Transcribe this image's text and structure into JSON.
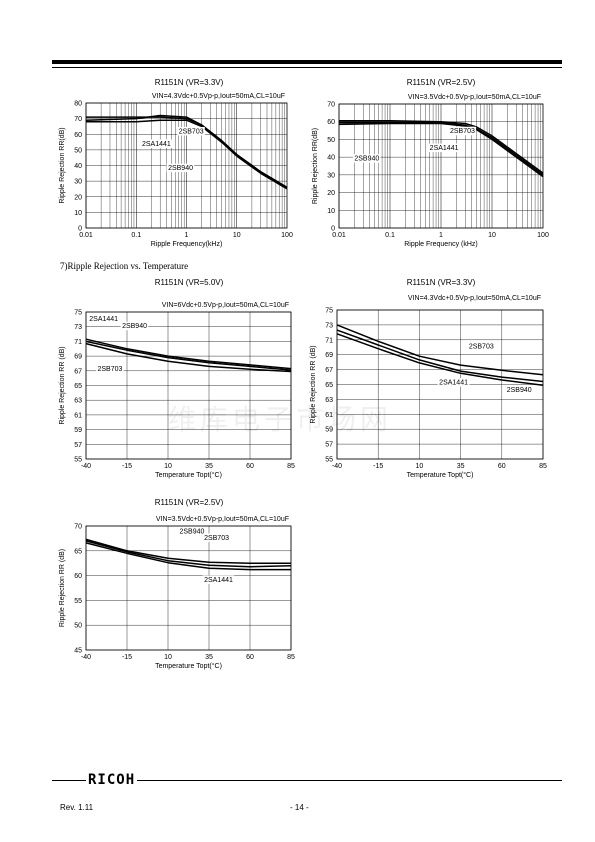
{
  "section_label": "7)Ripple Rejection vs. Temperature",
  "watermark": "维库电子市场网",
  "footer": {
    "logo": "RICOH",
    "revision": "Rev. 1.11",
    "page": "- 14 -"
  },
  "chart_data": [
    {
      "type": "line",
      "title": "R1151N (VR=3.3V)",
      "subtitle": "VIN=4.3Vdc+0.5Vp-p,Iout=50mA,CL=10uF",
      "xlabel": "Ripple Frequency(kHz)",
      "ylabel": "Ripple Rejection RR(dB)",
      "xscale": "log",
      "xlim": [
        0.01,
        100
      ],
      "ylim": [
        0,
        80
      ],
      "xticks": [
        0.01,
        0.1,
        1,
        10,
        100
      ],
      "xticklabels": [
        "0.01",
        "0.1",
        "1",
        "10",
        "100"
      ],
      "yticks": [
        0,
        10,
        20,
        30,
        40,
        50,
        60,
        70,
        80
      ],
      "grid": true,
      "series": [
        {
          "name": "2SA1441",
          "x": [
            0.01,
            0.1,
            0.3,
            1,
            2,
            5,
            10,
            30,
            100
          ],
          "y": [
            71,
            71,
            71,
            70,
            66,
            55,
            47,
            36,
            26
          ]
        },
        {
          "name": "2SB703",
          "x": [
            0.01,
            0.1,
            0.3,
            1,
            2,
            5,
            10,
            30,
            100
          ],
          "y": [
            69,
            70,
            72,
            71,
            66,
            56,
            47,
            36,
            26
          ]
        },
        {
          "name": "2SB940",
          "x": [
            0.01,
            0.1,
            0.3,
            1,
            2,
            5,
            10,
            30,
            100
          ],
          "y": [
            68,
            68,
            69,
            69,
            65,
            55,
            46,
            35,
            25
          ]
        }
      ],
      "annotations": [
        {
          "text": "2SB703",
          "x": 0.7,
          "y": 60.5
        },
        {
          "text": "2SA1441",
          "x": 0.13,
          "y": 52.5
        },
        {
          "text": "2SB940",
          "x": 0.43,
          "y": 37
        }
      ]
    },
    {
      "type": "line",
      "title": "R1151N (VR=2.5V)",
      "subtitle": "VIN=3.5Vdc+0.5Vp-p,Iout=50mA,CL=10uF",
      "xlabel": "Ripple Frequency (kHz)",
      "ylabel": "Ripple Rejection RR(dB)",
      "xscale": "log",
      "xlim": [
        0.01,
        100
      ],
      "ylim": [
        0,
        70
      ],
      "xticks": [
        0.01,
        0.1,
        1,
        10,
        100
      ],
      "xticklabels": [
        "0.01",
        "0.1",
        "1",
        "10",
        "100"
      ],
      "yticks": [
        0,
        10,
        20,
        30,
        40,
        50,
        60,
        70
      ],
      "grid": true,
      "series": [
        {
          "name": "2SB703",
          "x": [
            0.01,
            0.1,
            1,
            3,
            5,
            10,
            30,
            100
          ],
          "y": [
            60.5,
            60.5,
            60,
            59,
            57,
            52,
            42,
            31
          ]
        },
        {
          "name": "2SA1441",
          "x": [
            0.01,
            0.1,
            1,
            3,
            5,
            10,
            30,
            100
          ],
          "y": [
            59.5,
            59.5,
            59.5,
            58,
            56,
            51,
            41,
            30
          ]
        },
        {
          "name": "2SB940",
          "x": [
            0.01,
            0.1,
            1,
            3,
            5,
            10,
            30,
            100
          ],
          "y": [
            58.5,
            59,
            59,
            57.5,
            55.5,
            50,
            40,
            29
          ]
        }
      ],
      "annotations": [
        {
          "text": "2SB703",
          "x": 1.5,
          "y": 53.5
        },
        {
          "text": "2SA1441",
          "x": 0.6,
          "y": 44
        },
        {
          "text": "2SB940",
          "x": 0.02,
          "y": 38
        }
      ]
    },
    {
      "type": "line",
      "title": "R1151N (VR=5.0V)",
      "subtitle": "VIN=6Vdc+0.5Vp-p,Iout=50mA,CL=10uF",
      "xlabel": "Temperature Topt(°C)",
      "ylabel": "Ripple Rejection RR (dB)",
      "xlim": [
        -40,
        85
      ],
      "ylim": [
        55,
        75
      ],
      "xticks": [
        -40,
        -15,
        10,
        35,
        60,
        85
      ],
      "yticks": [
        55,
        57,
        59,
        61,
        63,
        65,
        67,
        69,
        71,
        73,
        75
      ],
      "grid": true,
      "series": [
        {
          "name": "2SA1441",
          "x": [
            -40,
            -15,
            10,
            35,
            60,
            85
          ],
          "y": [
            71.3,
            70,
            69,
            68.3,
            67.8,
            67.3
          ]
        },
        {
          "name": "2SB940",
          "x": [
            -40,
            -15,
            10,
            35,
            60,
            85
          ],
          "y": [
            71,
            69.8,
            68.8,
            68.1,
            67.6,
            67.1
          ]
        },
        {
          "name": "2SB703",
          "x": [
            -40,
            -15,
            10,
            35,
            60,
            85
          ],
          "y": [
            70.7,
            69.3,
            68.3,
            67.6,
            67.2,
            66.9
          ]
        }
      ],
      "annotations": [
        {
          "text": "2SA1441",
          "x": -38,
          "y": 73.8
        },
        {
          "text": "2SB940",
          "x": -18,
          "y": 72.8
        },
        {
          "text": "2SB703",
          "x": -33,
          "y": 67
        }
      ]
    },
    {
      "type": "line",
      "title": "R1151N (VR=3.3V)",
      "subtitle": "VIN=4.3Vdc+0.5Vp-p,Iout=50mA,CL=10uF",
      "xlabel": "Temperature Topt(°C)",
      "ylabel": "Ripple Rejection RR (dB)",
      "xlim": [
        -40,
        85
      ],
      "ylim": [
        55,
        75
      ],
      "xticks": [
        -40,
        -15,
        10,
        35,
        60,
        85
      ],
      "yticks": [
        55,
        57,
        59,
        61,
        63,
        65,
        67,
        69,
        71,
        73,
        75
      ],
      "grid": true,
      "series": [
        {
          "name": "2SB703",
          "x": [
            -40,
            -15,
            10,
            35,
            60,
            85
          ],
          "y": [
            73,
            70.8,
            68.8,
            67.6,
            66.9,
            66.3
          ]
        },
        {
          "name": "2SA1441",
          "x": [
            -40,
            -15,
            10,
            35,
            60,
            85
          ],
          "y": [
            72.3,
            70.3,
            68.3,
            66.8,
            66,
            65.4
          ]
        },
        {
          "name": "2SB940",
          "x": [
            -40,
            -15,
            10,
            35,
            60,
            85
          ],
          "y": [
            71.8,
            69.8,
            67.9,
            66.5,
            65.6,
            64.9
          ]
        }
      ],
      "annotations": [
        {
          "text": "2SB703",
          "x": 40,
          "y": 69.8
        },
        {
          "text": "2SA1441",
          "x": 22,
          "y": 65
        },
        {
          "text": "2SB940",
          "x": 63,
          "y": 64
        }
      ]
    },
    {
      "type": "line",
      "title": "R1151N (VR=2.5V)",
      "subtitle": "VIN=3.5Vdc+0.5Vp-p,Iout=50mA,CL=10uF",
      "xlabel": "Temperature Topt(°C)",
      "ylabel": "Ripple Rejection RR (dB)",
      "xlim": [
        -40,
        85
      ],
      "ylim": [
        45,
        70
      ],
      "xticks": [
        -40,
        -15,
        10,
        35,
        60,
        85
      ],
      "yticks": [
        45,
        50,
        55,
        60,
        65,
        70
      ],
      "grid": true,
      "series": [
        {
          "name": "2SB940",
          "x": [
            -40,
            -15,
            10,
            35,
            60,
            85
          ],
          "y": [
            67.3,
            65,
            63.5,
            62.7,
            62.5,
            62.5
          ]
        },
        {
          "name": "2SB703",
          "x": [
            -40,
            -15,
            10,
            35,
            60,
            85
          ],
          "y": [
            67,
            64.8,
            63,
            62.1,
            61.8,
            62
          ]
        },
        {
          "name": "2SA1441",
          "x": [
            -40,
            -15,
            10,
            35,
            60,
            85
          ],
          "y": [
            66.6,
            64.5,
            62.6,
            61.5,
            61.2,
            61.2
          ]
        }
      ],
      "annotations": [
        {
          "text": "2SB940",
          "x": 17,
          "y": 68.5
        },
        {
          "text": "2SB703",
          "x": 32,
          "y": 67.2
        },
        {
          "text": "2SA1441",
          "x": 32,
          "y": 58.7
        }
      ]
    }
  ]
}
